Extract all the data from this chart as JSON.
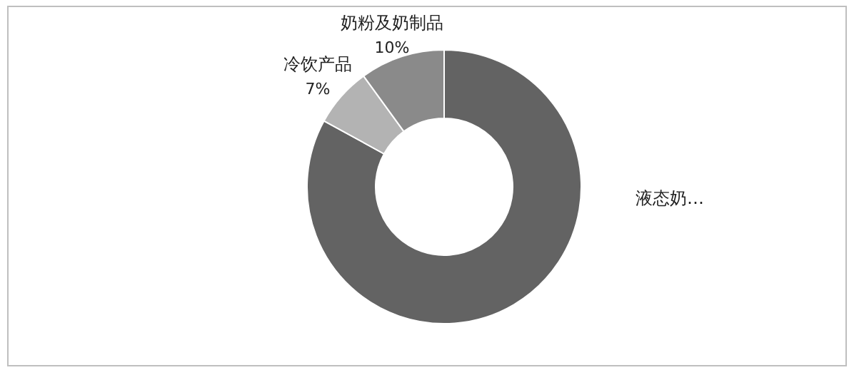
{
  "chart_data": {
    "type": "donut",
    "categories": [
      "液态奶…",
      "冷饮产品",
      "奶粉及奶制品"
    ],
    "values": [
      83,
      7,
      10
    ],
    "colors": [
      "#636363",
      "#b3b3b3",
      "#8a8a8a"
    ],
    "value_labels": [
      null,
      "7%",
      "10%"
    ]
  }
}
